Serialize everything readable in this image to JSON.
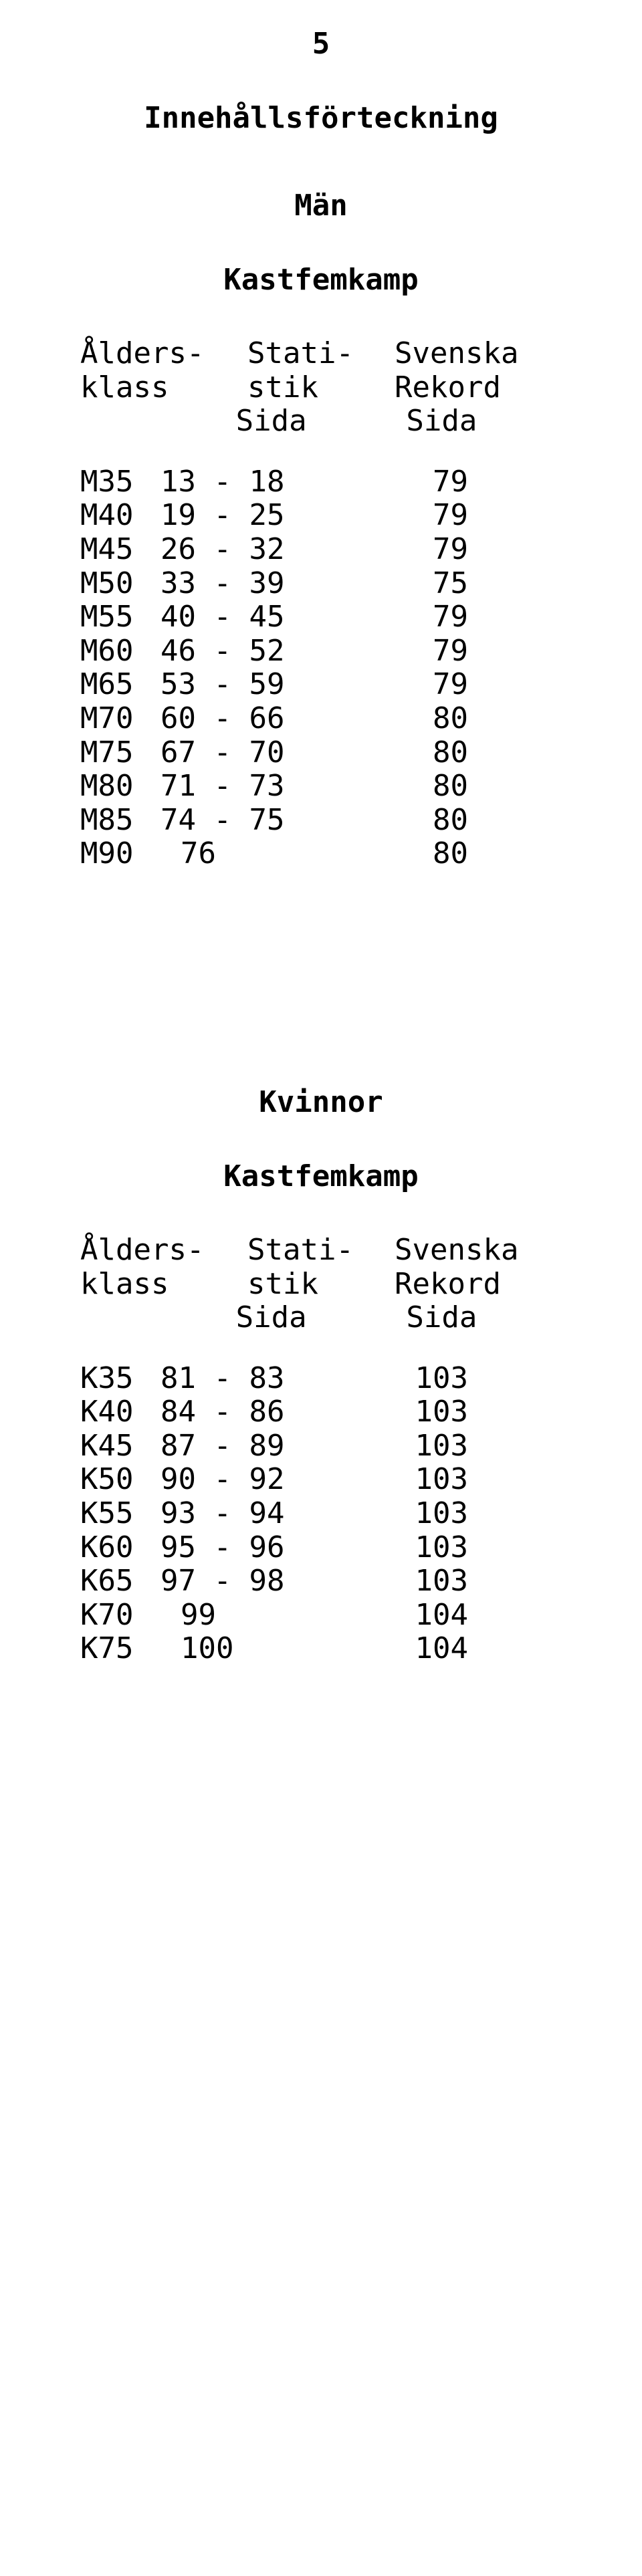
{
  "page_number": "5",
  "title": "Innehållsförteckning",
  "gender1": "Män",
  "event": "Kastfemkamp",
  "gender2": "Kvinnor",
  "header": {
    "line1_left": "Ålders-",
    "line1_mid": "Stati-",
    "line1_right": "Svenska",
    "line2_left": "klass",
    "line2_mid": "stik",
    "line2_right": "Rekord",
    "line3_mid": "Sida",
    "line3_right": "Sida"
  },
  "men_rows": [
    {
      "klass": "M35",
      "range": "13 - 18",
      "pg": "79"
    },
    {
      "klass": "M40",
      "range": "19 - 25",
      "pg": "79"
    },
    {
      "klass": "M45",
      "range": "26 - 32",
      "pg": "79"
    },
    {
      "klass": "M50",
      "range": "33 - 39",
      "pg": "75"
    },
    {
      "klass": "M55",
      "range": "40 - 45",
      "pg": "79"
    },
    {
      "klass": "M60",
      "range": "46 - 52",
      "pg": "79"
    },
    {
      "klass": "M65",
      "range": "53 - 59",
      "pg": "79"
    },
    {
      "klass": "M70",
      "range": "60 - 66",
      "pg": "80"
    },
    {
      "klass": "M75",
      "range": "67 - 70",
      "pg": "80"
    },
    {
      "klass": "M80",
      "range": "71 - 73",
      "pg": "80"
    },
    {
      "klass": "M85",
      "range": "74 - 75",
      "pg": "80"
    },
    {
      "klass": "M90",
      "range": "76",
      "pg": "80",
      "single": true
    }
  ],
  "women_rows": [
    {
      "klass": "K35",
      "range": "81 - 83",
      "pg": "103"
    },
    {
      "klass": "K40",
      "range": "84 - 86",
      "pg": "103"
    },
    {
      "klass": "K45",
      "range": "87 - 89",
      "pg": "103"
    },
    {
      "klass": "K50",
      "range": "90 - 92",
      "pg": "103"
    },
    {
      "klass": "K55",
      "range": "93 - 94",
      "pg": "103"
    },
    {
      "klass": "K60",
      "range": "95 - 96",
      "pg": "103"
    },
    {
      "klass": "K65",
      "range": "97 - 98",
      "pg": "103"
    },
    {
      "klass": "K70",
      "range": "99",
      "pg": "104",
      "single": true
    },
    {
      "klass": "K75",
      "range": "100",
      "pg": "104",
      "single": true
    }
  ]
}
